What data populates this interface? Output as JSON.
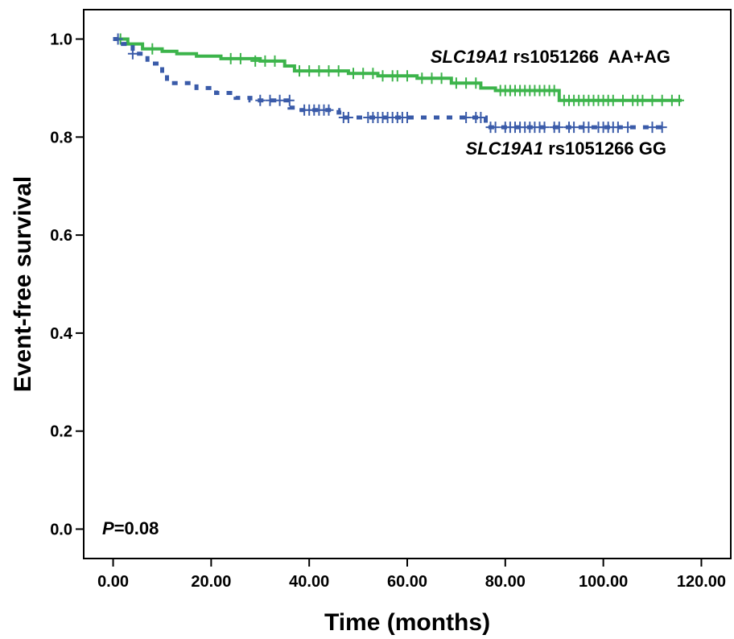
{
  "chart_data": {
    "type": "line",
    "subtype": "kaplan-meier",
    "xlabel": "Time (months)",
    "ylabel": "Event-free survival",
    "xlim": [
      -6,
      126
    ],
    "ylim": [
      -0.06,
      1.06
    ],
    "x_ticks": [
      0,
      20,
      40,
      60,
      80,
      100,
      120
    ],
    "x_tick_labels": [
      "0.00",
      "20.00",
      "40.00",
      "60.00",
      "80.00",
      "100.00",
      "120.00"
    ],
    "y_ticks": [
      0.0,
      0.2,
      0.4,
      0.6,
      0.8,
      1.0
    ],
    "y_tick_labels": [
      "0.0",
      "0.2",
      "0.4",
      "0.6",
      "0.8",
      "1.0"
    ],
    "grid": false,
    "annotation": {
      "p_symbol": "P",
      "p_value": "=0.08"
    },
    "series": [
      {
        "name_gene": "SLC19A1",
        "name_rest": " rs1051266  AA+AG",
        "color": "#3cb44b",
        "dash": "solid",
        "steps": [
          [
            0,
            1.0
          ],
          [
            3,
            0.99
          ],
          [
            6,
            0.98
          ],
          [
            10,
            0.975
          ],
          [
            13,
            0.97
          ],
          [
            17,
            0.965
          ],
          [
            22,
            0.96
          ],
          [
            30,
            0.955
          ],
          [
            35,
            0.945
          ],
          [
            37,
            0.935
          ],
          [
            48,
            0.93
          ],
          [
            54,
            0.925
          ],
          [
            62,
            0.92
          ],
          [
            69,
            0.91
          ],
          [
            75,
            0.9
          ],
          [
            78,
            0.895
          ],
          [
            91,
            0.875
          ],
          [
            116,
            0.875
          ]
        ],
        "censored": [
          [
            1.5,
            1.0
          ],
          [
            8,
            0.98
          ],
          [
            24,
            0.96
          ],
          [
            26,
            0.96
          ],
          [
            29,
            0.955
          ],
          [
            31,
            0.955
          ],
          [
            33,
            0.955
          ],
          [
            38,
            0.935
          ],
          [
            40,
            0.935
          ],
          [
            42,
            0.935
          ],
          [
            44,
            0.935
          ],
          [
            46,
            0.935
          ],
          [
            49,
            0.93
          ],
          [
            51,
            0.93
          ],
          [
            53,
            0.93
          ],
          [
            55,
            0.925
          ],
          [
            57,
            0.925
          ],
          [
            58,
            0.925
          ],
          [
            60,
            0.925
          ],
          [
            63,
            0.92
          ],
          [
            65,
            0.92
          ],
          [
            67,
            0.92
          ],
          [
            70,
            0.91
          ],
          [
            72,
            0.91
          ],
          [
            74,
            0.91
          ],
          [
            79,
            0.895
          ],
          [
            80,
            0.895
          ],
          [
            81,
            0.895
          ],
          [
            82,
            0.895
          ],
          [
            83,
            0.895
          ],
          [
            84,
            0.895
          ],
          [
            85,
            0.895
          ],
          [
            86,
            0.895
          ],
          [
            87,
            0.895
          ],
          [
            88,
            0.895
          ],
          [
            89,
            0.895
          ],
          [
            90,
            0.895
          ],
          [
            92,
            0.875
          ],
          [
            93,
            0.875
          ],
          [
            94,
            0.875
          ],
          [
            95,
            0.875
          ],
          [
            96,
            0.875
          ],
          [
            97,
            0.875
          ],
          [
            98,
            0.875
          ],
          [
            99,
            0.875
          ],
          [
            100,
            0.875
          ],
          [
            101,
            0.875
          ],
          [
            102,
            0.875
          ],
          [
            104,
            0.875
          ],
          [
            106,
            0.875
          ],
          [
            107,
            0.875
          ],
          [
            108,
            0.875
          ],
          [
            110,
            0.875
          ],
          [
            112,
            0.875
          ],
          [
            114,
            0.875
          ],
          [
            115.5,
            0.875
          ]
        ]
      },
      {
        "name_gene": "SLC19A1",
        "name_rest": " rs1051266 GG",
        "color": "#3a5ba9",
        "dash": "dashed",
        "steps": [
          [
            0,
            1.0
          ],
          [
            2,
            0.99
          ],
          [
            4,
            0.97
          ],
          [
            7,
            0.95
          ],
          [
            10,
            0.93
          ],
          [
            11,
            0.91
          ],
          [
            17,
            0.9
          ],
          [
            21,
            0.89
          ],
          [
            25,
            0.88
          ],
          [
            28,
            0.875
          ],
          [
            36,
            0.86
          ],
          [
            38,
            0.855
          ],
          [
            46,
            0.85
          ],
          [
            47,
            0.84
          ],
          [
            50,
            0.84
          ],
          [
            76,
            0.82
          ],
          [
            113,
            0.82
          ]
        ],
        "censored": [
          [
            1,
            1.0
          ],
          [
            4,
            0.97
          ],
          [
            30,
            0.875
          ],
          [
            32,
            0.875
          ],
          [
            34,
            0.875
          ],
          [
            36,
            0.875
          ],
          [
            39,
            0.855
          ],
          [
            40,
            0.855
          ],
          [
            41,
            0.855
          ],
          [
            42,
            0.855
          ],
          [
            43,
            0.855
          ],
          [
            44,
            0.855
          ],
          [
            47,
            0.84
          ],
          [
            48,
            0.84
          ],
          [
            52,
            0.84
          ],
          [
            53,
            0.84
          ],
          [
            54,
            0.84
          ],
          [
            55,
            0.84
          ],
          [
            56,
            0.84
          ],
          [
            57,
            0.84
          ],
          [
            58,
            0.84
          ],
          [
            59,
            0.84
          ],
          [
            60,
            0.84
          ],
          [
            72,
            0.84
          ],
          [
            74,
            0.84
          ],
          [
            75,
            0.84
          ],
          [
            77,
            0.82
          ],
          [
            78,
            0.82
          ],
          [
            80,
            0.82
          ],
          [
            81,
            0.82
          ],
          [
            82,
            0.82
          ],
          [
            83,
            0.82
          ],
          [
            84,
            0.82
          ],
          [
            85,
            0.82
          ],
          [
            86,
            0.82
          ],
          [
            87,
            0.82
          ],
          [
            88,
            0.82
          ],
          [
            90,
            0.82
          ],
          [
            91,
            0.82
          ],
          [
            93,
            0.82
          ],
          [
            94,
            0.82
          ],
          [
            96,
            0.82
          ],
          [
            97,
            0.82
          ],
          [
            99,
            0.82
          ],
          [
            100,
            0.82
          ],
          [
            101,
            0.82
          ],
          [
            102,
            0.82
          ],
          [
            103,
            0.82
          ],
          [
            105,
            0.82
          ],
          [
            110,
            0.82
          ],
          [
            112,
            0.82
          ]
        ]
      }
    ]
  }
}
